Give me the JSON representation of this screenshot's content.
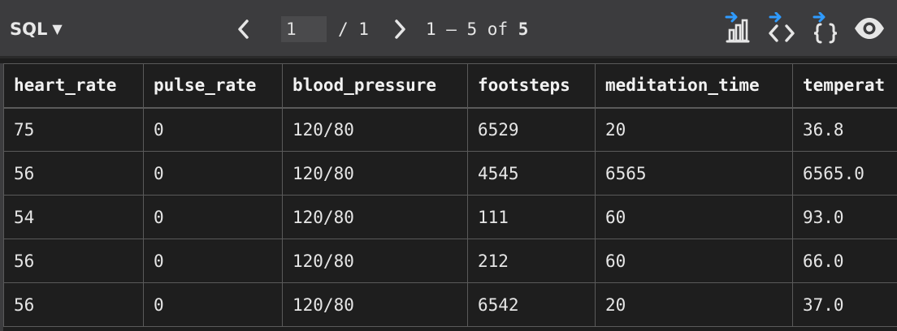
{
  "toolbar": {
    "language": "SQL",
    "language_caret": "▼",
    "prev_glyph": "‹",
    "next_glyph": "›",
    "page_value": "1",
    "page_total": "/ 1",
    "range_prefix": "1 – 5 of ",
    "range_total": "5",
    "icons": [
      "export-chart-icon",
      "export-code-icon",
      "export-json-icon",
      "preview-eye-icon"
    ],
    "accent_color": "#2f9bff"
  },
  "table": {
    "columns": [
      "heart_rate",
      "pulse_rate",
      "blood_pressure",
      "footsteps",
      "meditation_time",
      "temperat"
    ],
    "rows": [
      [
        "75",
        "0",
        "120/80",
        "6529",
        "20",
        "36.8"
      ],
      [
        "56",
        "0",
        "120/80",
        "4545",
        "6565",
        "6565.0"
      ],
      [
        "54",
        "0",
        "120/80",
        "111",
        "60",
        "93.0"
      ],
      [
        "56",
        "0",
        "120/80",
        "212",
        "60",
        "66.0"
      ],
      [
        "56",
        "0",
        "120/80",
        "6542",
        "20",
        "37.0"
      ]
    ]
  }
}
